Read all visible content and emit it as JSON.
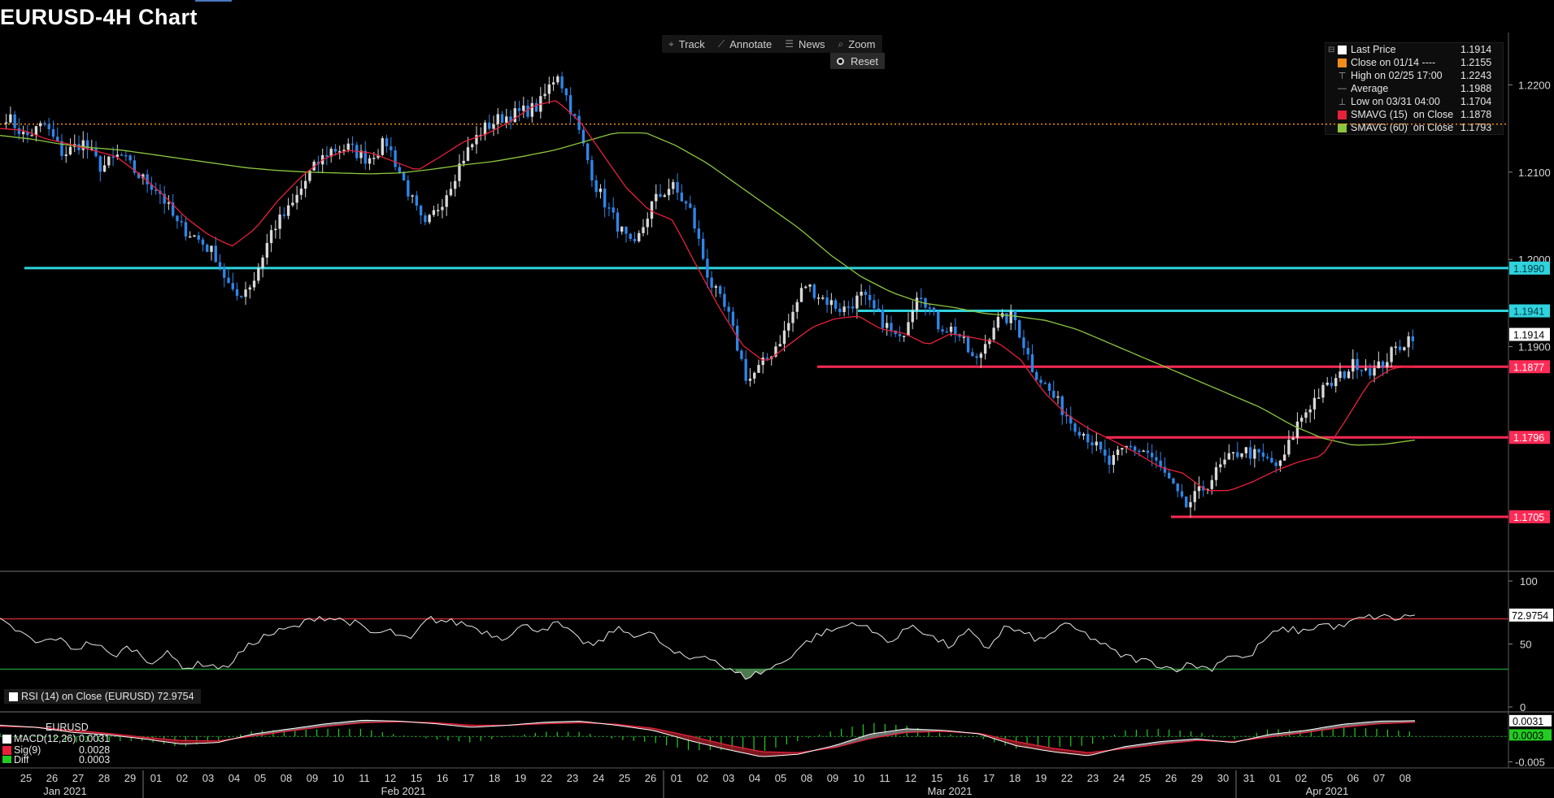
{
  "title": "EURUSD-4H Chart",
  "toolbar": {
    "track": "Track",
    "annotate": "Annotate",
    "news": "News",
    "zoom": "Zoom",
    "reset": "Reset",
    "icons": [
      "crosshair-icon",
      "pencil-icon",
      "news-icon",
      "magnifier-icon",
      "radio-icon"
    ]
  },
  "legend": [
    {
      "label": "Last Price",
      "value": "1.1914",
      "color": "#ffffff"
    },
    {
      "label": "Close on 01/14 ----",
      "value": "1.2155",
      "color": "#f28c1c"
    },
    {
      "label": "High on 02/25 17:00",
      "value": "1.2243",
      "glyph": "high-marker-icon"
    },
    {
      "label": "Average",
      "value": "1.1988",
      "glyph": "average-marker-icon"
    },
    {
      "label": "Low on 03/31 04:00",
      "value": "1.1704",
      "glyph": "low-marker-icon"
    },
    {
      "label": "SMAVG (15)  on Close",
      "value": "1.1878",
      "color": "#e8203a"
    },
    {
      "label": "SMAVG (60)  on Close",
      "value": "1.1793",
      "color": "#8cc63e"
    }
  ],
  "colors": {
    "background": "#000000",
    "candle_up": "#d9d9d9",
    "candle_down": "#2f86e8",
    "sma15": "#e8203a",
    "sma60": "#8cc63e",
    "resistance": "#2fd3de",
    "support": "#ff2a55",
    "prev_close": "#f28c1c"
  },
  "chart_data": [
    {
      "type": "candlestick",
      "title": "EURUSD-4H Chart",
      "ylim": [
        1.165,
        1.226
      ],
      "yticks": [
        "1.2200",
        "1.2100",
        "1.2000",
        "1.1900"
      ],
      "x_day_labels": [
        "25",
        "26",
        "27",
        "28",
        "29",
        "01",
        "02",
        "03",
        "04",
        "05",
        "08",
        "09",
        "10",
        "11",
        "12",
        "15",
        "16",
        "17",
        "18",
        "19",
        "22",
        "23",
        "24",
        "25",
        "26",
        "01",
        "02",
        "03",
        "04",
        "05",
        "08",
        "09",
        "10",
        "11",
        "12",
        "15",
        "16",
        "17",
        "18",
        "19",
        "22",
        "23",
        "24",
        "25",
        "26",
        "29",
        "30",
        "31",
        "01",
        "02",
        "05",
        "06",
        "07",
        "08"
      ],
      "x_month_labels": [
        "Jan 2021",
        "Feb 2021",
        "Mar 2021",
        "Apr 2021"
      ],
      "close_path": [
        1.2165,
        1.214,
        1.2155,
        1.212,
        1.2135,
        1.2105,
        1.212,
        1.2095,
        1.208,
        1.204,
        1.2025,
        1.2005,
        1.1955,
        1.1975,
        1.2035,
        1.206,
        1.21,
        1.2125,
        1.2128,
        1.2115,
        1.2135,
        1.2085,
        1.2035,
        1.207,
        1.2115,
        1.2148,
        1.2162,
        1.2168,
        1.2175,
        1.2215,
        1.2155,
        1.2085,
        1.2045,
        1.201,
        1.2065,
        1.2085,
        1.2055,
        1.1975,
        1.1935,
        1.186,
        1.1885,
        1.1918,
        1.1972,
        1.1955,
        1.1942,
        1.1958,
        1.1932,
        1.1905,
        1.1968,
        1.1925,
        1.1918,
        1.188,
        1.1928,
        1.1935,
        1.1875,
        1.1845,
        1.1815,
        1.1795,
        1.1765,
        1.1785,
        1.178,
        1.1752,
        1.1715,
        1.1738,
        1.1765,
        1.1782,
        1.1773,
        1.1762,
        1.1815,
        1.1845,
        1.1862,
        1.1882,
        1.1872,
        1.1895,
        1.1914
      ],
      "sma15_path": [
        1.215,
        1.2148,
        1.2138,
        1.2132,
        1.2125,
        1.2118,
        1.2098,
        1.2075,
        1.2048,
        1.2028,
        1.2015,
        1.2035,
        1.2068,
        1.2095,
        1.2116,
        1.2125,
        1.2122,
        1.2112,
        1.2102,
        1.2118,
        1.2135,
        1.2144,
        1.2158,
        1.2176,
        1.2182,
        1.2158,
        1.212,
        1.2082,
        1.2056,
        1.2045,
        1.1994,
        1.1945,
        1.1902,
        1.1882,
        1.1902,
        1.1922,
        1.1932,
        1.1935,
        1.192,
        1.1915,
        1.1902,
        1.1915,
        1.191,
        1.1905,
        1.1885,
        1.1848,
        1.1822,
        1.1805,
        1.1792,
        1.1778,
        1.1762,
        1.1755,
        1.1735,
        1.1735,
        1.1745,
        1.1758,
        1.1768,
        1.1775,
        1.1815,
        1.1858,
        1.1875,
        1.1878
      ],
      "sma60_path": [
        1.2142,
        1.2138,
        1.2132,
        1.2128,
        1.2125,
        1.212,
        1.2115,
        1.211,
        1.2105,
        1.2102,
        1.21,
        1.2099,
        1.2098,
        1.2099,
        1.2103,
        1.2108,
        1.2112,
        1.2118,
        1.2125,
        1.2135,
        1.2145,
        1.2145,
        1.213,
        1.211,
        1.2085,
        1.206,
        1.2035,
        1.2005,
        1.198,
        1.1962,
        1.195,
        1.1945,
        1.1938,
        1.1935,
        1.193,
        1.192,
        1.1905,
        1.189,
        1.1875,
        1.186,
        1.1845,
        1.183,
        1.181,
        1.1795,
        1.1787,
        1.1788,
        1.1793
      ],
      "horizontal_levels": [
        {
          "label": "1.1990",
          "value": 1.199,
          "kind": "resistance"
        },
        {
          "label": "1.1941",
          "value": 1.1941,
          "kind": "resistance"
        },
        {
          "label": "1.1914",
          "value": 1.1914,
          "kind": "last"
        },
        {
          "label": "1.1877",
          "value": 1.1877,
          "kind": "support"
        },
        {
          "label": "1.1796",
          "value": 1.1796,
          "kind": "support"
        },
        {
          "label": "1.1705",
          "value": 1.1705,
          "kind": "support"
        }
      ],
      "prev_close_level": 1.2155
    },
    {
      "type": "line",
      "name": "RSI (14)  on Close (EURUSD)",
      "label": "RSI (14)  on Close (EURUSD) 72.9754",
      "last_value": "72.9754",
      "ylim": [
        0,
        100
      ],
      "yticks": [
        "100",
        "50",
        "0"
      ],
      "levels": [
        70,
        30
      ],
      "path": [
        68,
        60,
        50,
        55,
        46,
        52,
        40,
        48,
        36,
        42,
        31,
        35,
        30,
        44,
        55,
        60,
        64,
        72,
        70,
        67,
        58,
        60,
        52,
        70,
        68,
        66,
        60,
        55,
        64,
        62,
        66,
        54,
        48,
        62,
        58,
        58,
        44,
        38,
        42,
        30,
        24,
        28,
        35,
        48,
        58,
        62,
        68,
        58,
        52,
        66,
        56,
        48,
        60,
        46,
        64,
        58,
        52,
        66,
        60,
        52,
        42,
        38,
        35,
        30,
        34,
        30,
        42,
        38,
        55,
        62,
        60,
        66,
        63,
        70,
        72,
        70,
        72.9754
      ]
    },
    {
      "type": "bar+line",
      "name": "EURUSD",
      "series": [
        {
          "name": "MACD(12,26)",
          "last": "0.0031"
        },
        {
          "name": "Sig(9)",
          "last": "0.0028"
        },
        {
          "name": "Diff",
          "last": "0.0003"
        }
      ],
      "yticks": [
        "0.0031",
        "0.0003",
        "-0.005"
      ],
      "ylim": [
        -0.0062,
        0.0042
      ],
      "macd_path": [
        0.0022,
        0.0018,
        0.0008,
        0.0003,
        -0.0005,
        -0.0015,
        -0.0012,
        0.0005,
        0.0015,
        0.0025,
        0.0032,
        0.003,
        0.0025,
        0.0018,
        0.0022,
        0.0028,
        0.003,
        0.0022,
        0.0012,
        -0.0008,
        -0.0025,
        -0.004,
        -0.0035,
        -0.0018,
        0.0005,
        0.0015,
        0.0012,
        0.0005,
        -0.0018,
        -0.003,
        -0.0038,
        -0.002,
        -0.001,
        -0.0005,
        -0.0012,
        0.0004,
        0.0012,
        0.0024,
        0.003,
        0.0031
      ],
      "sig_path": [
        0.002,
        0.0018,
        0.0012,
        0.0006,
        -0.0002,
        -0.0008,
        -0.0009,
        0.0001,
        0.0011,
        0.002,
        0.0027,
        0.0029,
        0.0027,
        0.0022,
        0.0022,
        0.0025,
        0.0027,
        0.0024,
        0.0016,
        0.0001,
        -0.0016,
        -0.003,
        -0.0032,
        -0.0022,
        -0.0004,
        0.0008,
        0.001,
        0.0006,
        -0.001,
        -0.0023,
        -0.0032,
        -0.0024,
        -0.0015,
        -0.0008,
        -0.001,
        -0.0001,
        0.0008,
        0.0018,
        0.0025,
        0.0028
      ]
    }
  ]
}
